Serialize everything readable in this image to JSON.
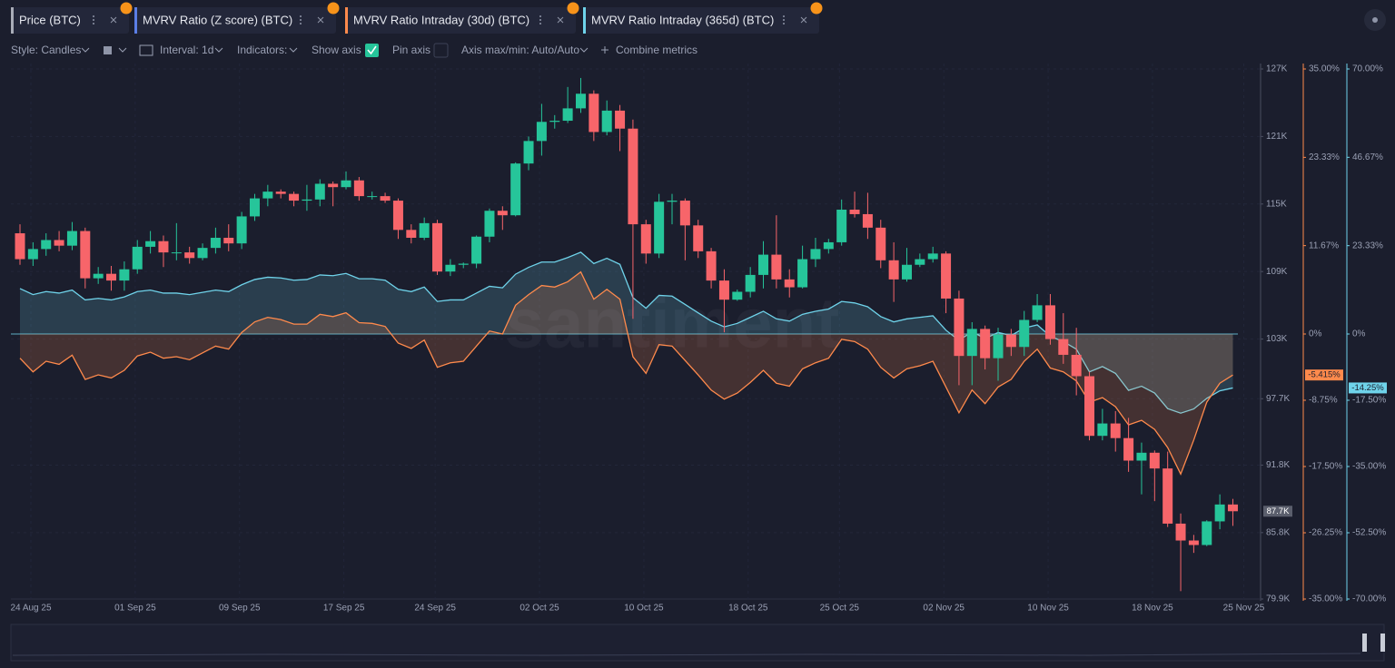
{
  "toolbar": {
    "style": "Style: Candles",
    "interval": "Interval: 1d",
    "indicators": "Indicators:",
    "show_axis": "Show axis",
    "pin_axis": "Pin axis",
    "axis_range": "Axis max/min: Auto/Auto",
    "combine": "Combine metrics"
  },
  "chart_data": {
    "type": "candlestick",
    "watermark": "santiment",
    "grid": true,
    "categories": [
      "24 Aug 25",
      null,
      null,
      null,
      null,
      null,
      null,
      null,
      "01 Sep 25",
      null,
      null,
      null,
      null,
      null,
      null,
      null,
      "09 Sep 25",
      null,
      null,
      null,
      null,
      null,
      null,
      null,
      "17 Sep 25",
      null,
      null,
      null,
      null,
      null,
      null,
      "24 Sep 25",
      null,
      null,
      null,
      null,
      null,
      null,
      null,
      "02 Oct 25",
      null,
      null,
      null,
      null,
      null,
      null,
      null,
      "10 Oct 25",
      null,
      null,
      null,
      null,
      null,
      null,
      null,
      "18 Oct 25",
      null,
      null,
      null,
      null,
      null,
      null,
      "25 Oct 25",
      null,
      null,
      null,
      null,
      null,
      null,
      null,
      "02 Nov 25",
      null,
      null,
      null,
      null,
      null,
      null,
      null,
      "10 Nov 25",
      null,
      null,
      null,
      null,
      null,
      null,
      null,
      "18 Nov 25",
      null,
      null,
      null,
      null,
      null,
      null,
      "25 Nov 25"
    ],
    "series": [
      {
        "name": "Price (BTC)",
        "type": "candlestick",
        "axis": "y",
        "color": "#a9adb8",
        "up_color": "#26c59a",
        "down_color": "#f7656a",
        "open": [
          112400,
          110100,
          111000,
          111800,
          111300,
          112600,
          108400,
          108800,
          108200,
          109200,
          111200,
          111700,
          110700,
          110700,
          110200,
          111100,
          112000,
          111500,
          113900,
          115500,
          116100,
          115900,
          115300,
          115400,
          116800,
          116500,
          117100,
          115700,
          115700,
          115300,
          112700,
          112000,
          113300,
          109000,
          109600,
          109700,
          112100,
          114400,
          114000,
          118600,
          120600,
          122300,
          122400,
          123500,
          124800,
          121400,
          123300,
          121700,
          113200,
          110600,
          115200,
          115300,
          113100,
          110800,
          108200,
          106500,
          107200,
          108700,
          110500,
          108300,
          107600,
          110100,
          111000,
          111600,
          114500,
          114100,
          112900,
          110000,
          108300,
          109600,
          110100,
          110600,
          106600,
          101500,
          103900,
          101300,
          103400,
          102300,
          104700,
          106000,
          103000,
          101600,
          99700,
          94400,
          95500,
          94200,
          92200,
          92900,
          91500,
          86600,
          85100,
          84700,
          86800,
          88300
        ],
        "high": [
          113200,
          111600,
          112400,
          112600,
          113400,
          112900,
          109400,
          109500,
          109900,
          111800,
          112600,
          112200,
          113300,
          111200,
          111500,
          112900,
          113200,
          114300,
          115900,
          116700,
          116300,
          116100,
          116700,
          117200,
          117000,
          117900,
          117400,
          116100,
          116000,
          115500,
          113200,
          113800,
          113600,
          110100,
          109800,
          112200,
          114600,
          114800,
          118700,
          121000,
          123900,
          122900,
          125400,
          126200,
          125100,
          124200,
          123800,
          122500,
          113600,
          115900,
          115900,
          115500,
          113600,
          111100,
          109200,
          107400,
          109400,
          111700,
          114000,
          109200,
          111300,
          112000,
          111900,
          115400,
          116100,
          116000,
          113600,
          111600,
          111100,
          110600,
          111200,
          110800,
          107300,
          104500,
          104200,
          104000,
          103900,
          105500,
          107000,
          107000,
          105300,
          104000,
          100100,
          96800,
          96600,
          96000,
          93800,
          93100,
          93000,
          87500,
          85600,
          86900,
          89200,
          88800
        ],
        "low": [
          109600,
          109500,
          110400,
          110800,
          110900,
          107500,
          107900,
          107300,
          107300,
          108800,
          110600,
          109400,
          110000,
          109700,
          110000,
          110600,
          110800,
          111000,
          113500,
          114800,
          115500,
          114800,
          114400,
          114800,
          114800,
          116300,
          115300,
          115400,
          115100,
          111900,
          111500,
          111800,
          108700,
          108600,
          109300,
          109300,
          111600,
          112700,
          113900,
          118000,
          119300,
          121700,
          122200,
          123100,
          120600,
          121100,
          119700,
          104800,
          109700,
          110200,
          113200,
          110000,
          110200,
          107500,
          103600,
          106400,
          106700,
          107500,
          107500,
          106700,
          107500,
          109400,
          110600,
          111300,
          113800,
          111900,
          109300,
          106300,
          108100,
          109400,
          109800,
          105300,
          98900,
          98900,
          100300,
          99300,
          101500,
          101500,
          104500,
          102500,
          100800,
          98000,
          94000,
          94000,
          93000,
          91200,
          89200,
          88600,
          86300,
          80600,
          84000,
          84600,
          86100,
          86400
        ],
        "close": [
          110100,
          111000,
          111800,
          111300,
          112600,
          108400,
          108800,
          108200,
          109200,
          111200,
          111700,
          110700,
          110700,
          110200,
          111100,
          112000,
          111500,
          113900,
          115500,
          116100,
          115900,
          115300,
          115400,
          116800,
          116500,
          117100,
          115700,
          115700,
          115300,
          112700,
          112000,
          113300,
          109000,
          109600,
          109700,
          112100,
          114400,
          114000,
          118600,
          120600,
          122300,
          122400,
          123500,
          124800,
          121400,
          123300,
          121700,
          113200,
          110600,
          115200,
          115300,
          113100,
          110800,
          108200,
          106500,
          107200,
          108700,
          110500,
          108300,
          107600,
          110100,
          111000,
          111600,
          114500,
          114100,
          112900,
          110000,
          108300,
          109600,
          110100,
          110600,
          106600,
          101500,
          103900,
          101300,
          103400,
          102300,
          104700,
          106000,
          103000,
          101600,
          99700,
          94400,
          95500,
          94200,
          92200,
          92900,
          91500,
          86600,
          85100,
          84700,
          86800,
          88300,
          87700
        ],
        "last_value_label": "87.7K"
      },
      {
        "name": "MVRV Ratio (Z score) (BTC)",
        "color": "#5b7ee5"
      },
      {
        "name": "MVRV Ratio Intraday (30d) (BTC)",
        "type": "area",
        "axis": "y2",
        "color": "#ff8a4c",
        "values": [
          -3.2,
          -5.0,
          -3.6,
          -4.0,
          -2.8,
          -6.0,
          -5.4,
          -5.8,
          -4.8,
          -2.9,
          -2.4,
          -3.2,
          -3.0,
          -3.4,
          -2.5,
          -1.6,
          -2.0,
          0.2,
          1.6,
          2.2,
          1.9,
          1.3,
          1.3,
          2.6,
          2.3,
          2.8,
          1.5,
          1.4,
          1.0,
          -1.2,
          -1.9,
          -0.8,
          -4.4,
          -3.8,
          -3.6,
          -1.6,
          0.4,
          0.0,
          3.8,
          5.2,
          6.4,
          6.2,
          6.9,
          8.2,
          4.6,
          5.9,
          4.6,
          -3.0,
          -5.2,
          -1.4,
          -1.6,
          -3.5,
          -5.4,
          -7.4,
          -8.6,
          -7.8,
          -6.4,
          -4.8,
          -6.5,
          -6.9,
          -4.6,
          -3.8,
          -3.2,
          -0.7,
          -1.0,
          -2.0,
          -4.4,
          -5.8,
          -4.6,
          -4.2,
          -3.6,
          -7.0,
          -10.4,
          -7.4,
          -9.2,
          -7.0,
          -6.0,
          -3.6,
          -2.0,
          -4.5,
          -5.0,
          -6.2,
          -9.0,
          -8.4,
          -9.6,
          -12.0,
          -11.4,
          -12.6,
          -15.0,
          -18.5,
          -14.0,
          -9.0,
          -6.5,
          -5.415
        ],
        "last_value_label": "-5.415%"
      },
      {
        "name": "MVRV Ratio Intraday (365d) (BTC)",
        "type": "area",
        "axis": "y3",
        "color": "#6fd3ea",
        "values": [
          12.0,
          10.4,
          11.2,
          10.8,
          11.6,
          9.0,
          9.4,
          9.0,
          9.8,
          11.2,
          11.6,
          10.8,
          10.8,
          10.4,
          11.0,
          11.6,
          11.2,
          13.0,
          14.4,
          15.0,
          14.8,
          14.2,
          14.4,
          15.6,
          15.4,
          16.0,
          14.6,
          14.6,
          14.2,
          11.8,
          11.2,
          12.4,
          8.6,
          9.0,
          9.0,
          10.8,
          12.6,
          12.2,
          15.8,
          17.6,
          19.0,
          19.0,
          20.2,
          21.6,
          18.6,
          20.0,
          18.4,
          9.6,
          6.8,
          10.2,
          10.0,
          7.8,
          5.6,
          3.4,
          1.9,
          2.8,
          4.4,
          6.0,
          4.0,
          3.4,
          5.2,
          6.0,
          6.6,
          8.6,
          8.2,
          7.2,
          4.6,
          3.2,
          4.0,
          4.4,
          4.8,
          1.0,
          -1.7,
          0.6,
          -1.2,
          0.4,
          -0.4,
          1.6,
          2.4,
          -0.6,
          -2.0,
          -4.0,
          -10.0,
          -8.6,
          -10.4,
          -14.9,
          -13.8,
          -15.6,
          -19.7,
          -20.9,
          -19.8,
          -17.0,
          -15.0,
          -14.25
        ],
        "last_value_label": "-14.25%"
      }
    ],
    "ylim": [
      79900,
      127000
    ],
    "yticks": [
      {
        "value": 127000,
        "label": "127K"
      },
      {
        "value": 121000,
        "label": "121K"
      },
      {
        "value": 115000,
        "label": "115K"
      },
      {
        "value": 109000,
        "label": "109K"
      },
      {
        "value": 103000,
        "label": "103K"
      },
      {
        "value": 97700,
        "label": "97.7K"
      },
      {
        "value": 91800,
        "label": "91.8K"
      },
      {
        "value": 85800,
        "label": "85.8K"
      },
      {
        "value": 79900,
        "label": "79.9K"
      }
    ],
    "y2lim": [
      -35,
      35
    ],
    "y2ticks": [
      {
        "value": 35,
        "label": "35.00%"
      },
      {
        "value": 23.33,
        "label": "23.33%"
      },
      {
        "value": 11.67,
        "label": "11.67%"
      },
      {
        "value": 0,
        "label": "0%"
      },
      {
        "value": -8.75,
        "label": "-8.75%"
      },
      {
        "value": -17.5,
        "label": "-17.50%"
      },
      {
        "value": -26.25,
        "label": "-26.25%"
      },
      {
        "value": -35,
        "label": "-35.00%"
      }
    ],
    "y3lim": [
      -70,
      70
    ],
    "y3ticks": [
      {
        "value": 70,
        "label": "70.00%"
      },
      {
        "value": 46.67,
        "label": "46.67%"
      },
      {
        "value": 23.33,
        "label": "23.33%"
      },
      {
        "value": 0,
        "label": "0%"
      },
      {
        "value": -17.5,
        "label": "-17.50%"
      },
      {
        "value": -35,
        "label": "-35.00%"
      },
      {
        "value": -52.5,
        "label": "-52.50%"
      },
      {
        "value": -70,
        "label": "-70.00%"
      }
    ]
  }
}
